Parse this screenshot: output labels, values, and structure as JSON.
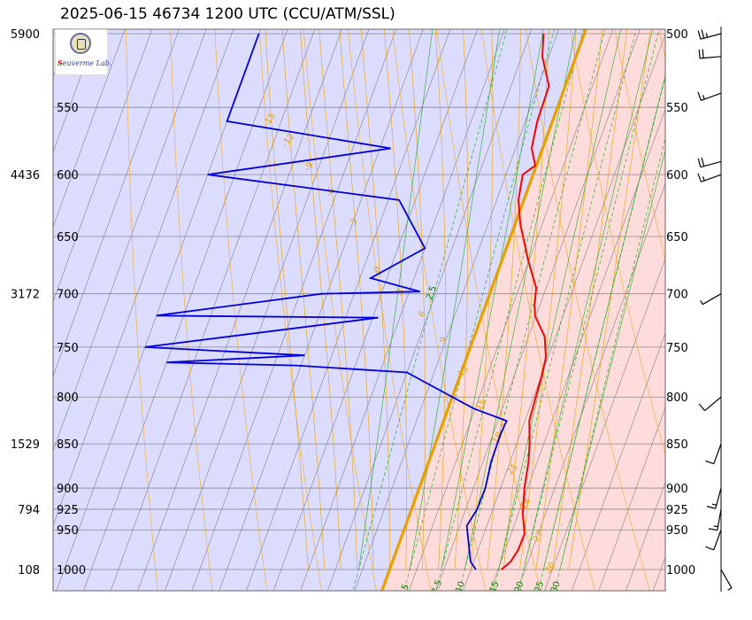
{
  "title": "2025-06-15 46734 1200 UTC (CCU/ATM/SSL)",
  "logo": {
    "text_prefix": "S",
    "text_main": "euverme",
    "text_lab": "Lab."
  },
  "colors": {
    "stable_fill": "#dcdcff",
    "unstable_fill": "#ffdcdc",
    "isobar": "#888888",
    "isotherm": "#666666",
    "dry_adiabat": "#f0b040",
    "moist_adiabat": "#e8a000",
    "zero_isotherm": "#e8a000",
    "mixing_ratio": "#22aa22",
    "temperature": "#ff0000",
    "dewpoint": "#0000dd",
    "wind": "#000000"
  },
  "chart_data": {
    "type": "skew-t",
    "pressure_levels_hpa": [
      500,
      550,
      600,
      650,
      700,
      750,
      800,
      850,
      900,
      925,
      950,
      1000
    ],
    "pressure_labels_left": [
      "500",
      "550",
      "600",
      "650",
      "700",
      "750",
      "800",
      "850",
      "900",
      "925",
      "950",
      "1000"
    ],
    "pressure_labels_right": [
      "500",
      "550",
      "600",
      "650",
      "700",
      "750",
      "800",
      "850",
      "900",
      "925",
      "950",
      "1000"
    ],
    "height_labels": [
      {
        "p": 500,
        "h": "5900"
      },
      {
        "p": 600,
        "h": "4436"
      },
      {
        "p": 700,
        "h": "3172"
      },
      {
        "p": 850,
        "h": "1529"
      },
      {
        "p": 925,
        "h": "794"
      },
      {
        "p": 1000,
        "h": "108"
      }
    ],
    "mixing_ratio_labels": [
      "5",
      "7.5",
      "10",
      "15",
      "20",
      "25",
      "30",
      "2.5"
    ],
    "moist_adiabat_labels": [
      "-15",
      "-12",
      "-9",
      "-6",
      "-3",
      "0",
      "3",
      "6",
      "9",
      "12",
      "15",
      "18",
      "21",
      "24",
      "27",
      "30"
    ],
    "temperature_profile": [
      {
        "p": 1000,
        "t": 20.6
      },
      {
        "p": 990,
        "t": 21.8
      },
      {
        "p": 975,
        "t": 22.4
      },
      {
        "p": 955,
        "t": 22.5
      },
      {
        "p": 930,
        "t": 20.8
      },
      {
        "p": 900,
        "t": 19.4
      },
      {
        "p": 870,
        "t": 18.4
      },
      {
        "p": 850,
        "t": 17.4
      },
      {
        "p": 825,
        "t": 15.8
      },
      {
        "p": 800,
        "t": 15.4
      },
      {
        "p": 780,
        "t": 15.1
      },
      {
        "p": 760,
        "t": 14.6
      },
      {
        "p": 740,
        "t": 13.0
      },
      {
        "p": 720,
        "t": 9.8
      },
      {
        "p": 710,
        "t": 9.0
      },
      {
        "p": 695,
        "t": 8.2
      },
      {
        "p": 670,
        "t": 4.8
      },
      {
        "p": 640,
        "t": 1.0
      },
      {
        "p": 620,
        "t": -1.0
      },
      {
        "p": 600,
        "t": -1.9
      },
      {
        "p": 593,
        "t": -0.2
      },
      {
        "p": 580,
        "t": -2.0
      },
      {
        "p": 560,
        "t": -2.8
      },
      {
        "p": 535,
        "t": -3.0
      },
      {
        "p": 515,
        "t": -6.2
      },
      {
        "p": 500,
        "t": -7.5
      }
    ],
    "dewpoint_profile": [
      {
        "p": 1000,
        "td": 15.9
      },
      {
        "p": 990,
        "td": 14.4
      },
      {
        "p": 945,
        "td": 11.3
      },
      {
        "p": 925,
        "td": 12.1
      },
      {
        "p": 900,
        "td": 12.2
      },
      {
        "p": 870,
        "td": 11.5
      },
      {
        "p": 840,
        "td": 11.4
      },
      {
        "p": 825,
        "td": 11.6
      },
      {
        "p": 812,
        "td": 4.7
      },
      {
        "p": 775,
        "td": -10.0
      },
      {
        "p": 768,
        "td": -31.0
      },
      {
        "p": 765,
        "td": -55.0
      },
      {
        "p": 758,
        "td": -30.0
      },
      {
        "p": 750,
        "td": -60.0
      },
      {
        "p": 722,
        "td": -19.0
      },
      {
        "p": 720,
        "td": -60.0
      },
      {
        "p": 700,
        "td": -31.0
      },
      {
        "p": 698,
        "td": -13.0
      },
      {
        "p": 686,
        "td": -23.0
      },
      {
        "p": 660,
        "td": -15.0
      },
      {
        "p": 620,
        "td": -23.0
      },
      {
        "p": 600,
        "td": -60.0
      },
      {
        "p": 580,
        "td": -28.0
      },
      {
        "p": 560,
        "td": -60.0
      },
      {
        "p": 520,
        "td": -60.0
      },
      {
        "p": 500,
        "td": -60.0
      }
    ],
    "wind_barbs": [
      {
        "p": 500,
        "dir": 255,
        "kt": 25
      },
      {
        "p": 515,
        "dir": 265,
        "kt": 20
      },
      {
        "p": 540,
        "dir": 250,
        "kt": 15
      },
      {
        "p": 590,
        "dir": 255,
        "kt": 20
      },
      {
        "p": 600,
        "dir": 250,
        "kt": 15
      },
      {
        "p": 700,
        "dir": 240,
        "kt": 5
      },
      {
        "p": 800,
        "dir": 230,
        "kt": 10
      },
      {
        "p": 850,
        "dir": 200,
        "kt": 10
      },
      {
        "p": 900,
        "dir": 195,
        "kt": 15
      },
      {
        "p": 925,
        "dir": 190,
        "kt": 15
      },
      {
        "p": 950,
        "dir": 200,
        "kt": 10
      },
      {
        "p": 1000,
        "dir": 150,
        "kt": 5
      }
    ],
    "ylim": [
      500,
      1000
    ],
    "xlabel": "",
    "ylabel": ""
  }
}
